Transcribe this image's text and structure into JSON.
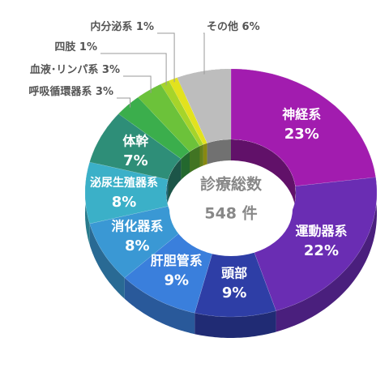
{
  "chart_data": {
    "type": "pie",
    "center_title": "診療総数",
    "total": 548,
    "total_label": "548 件",
    "categories": [
      "神経系",
      "運動器系",
      "頭部",
      "肝胆管系",
      "消化器系",
      "泌尿生殖器系",
      "体幹",
      "呼吸循環器系",
      "血液･リンパ系",
      "四肢",
      "内分泌系",
      "その他"
    ],
    "values": [
      23,
      22,
      9,
      9,
      8,
      8,
      7,
      3,
      3,
      1,
      1,
      6
    ],
    "value_labels": [
      "23%",
      "22%",
      "9%",
      "9%",
      "8%",
      "8%",
      "7%",
      "3%",
      "3%",
      "1%",
      "1%",
      "6%"
    ],
    "colors": [
      "#a21caf",
      "#6a2db3",
      "#2e3ea6",
      "#3a7fdc",
      "#3a98d4",
      "#3bb0c8",
      "#2e8e78",
      "#3bae4c",
      "#6cc23a",
      "#a6d42a",
      "#e2e21e",
      "#bdbdbd"
    ]
  }
}
